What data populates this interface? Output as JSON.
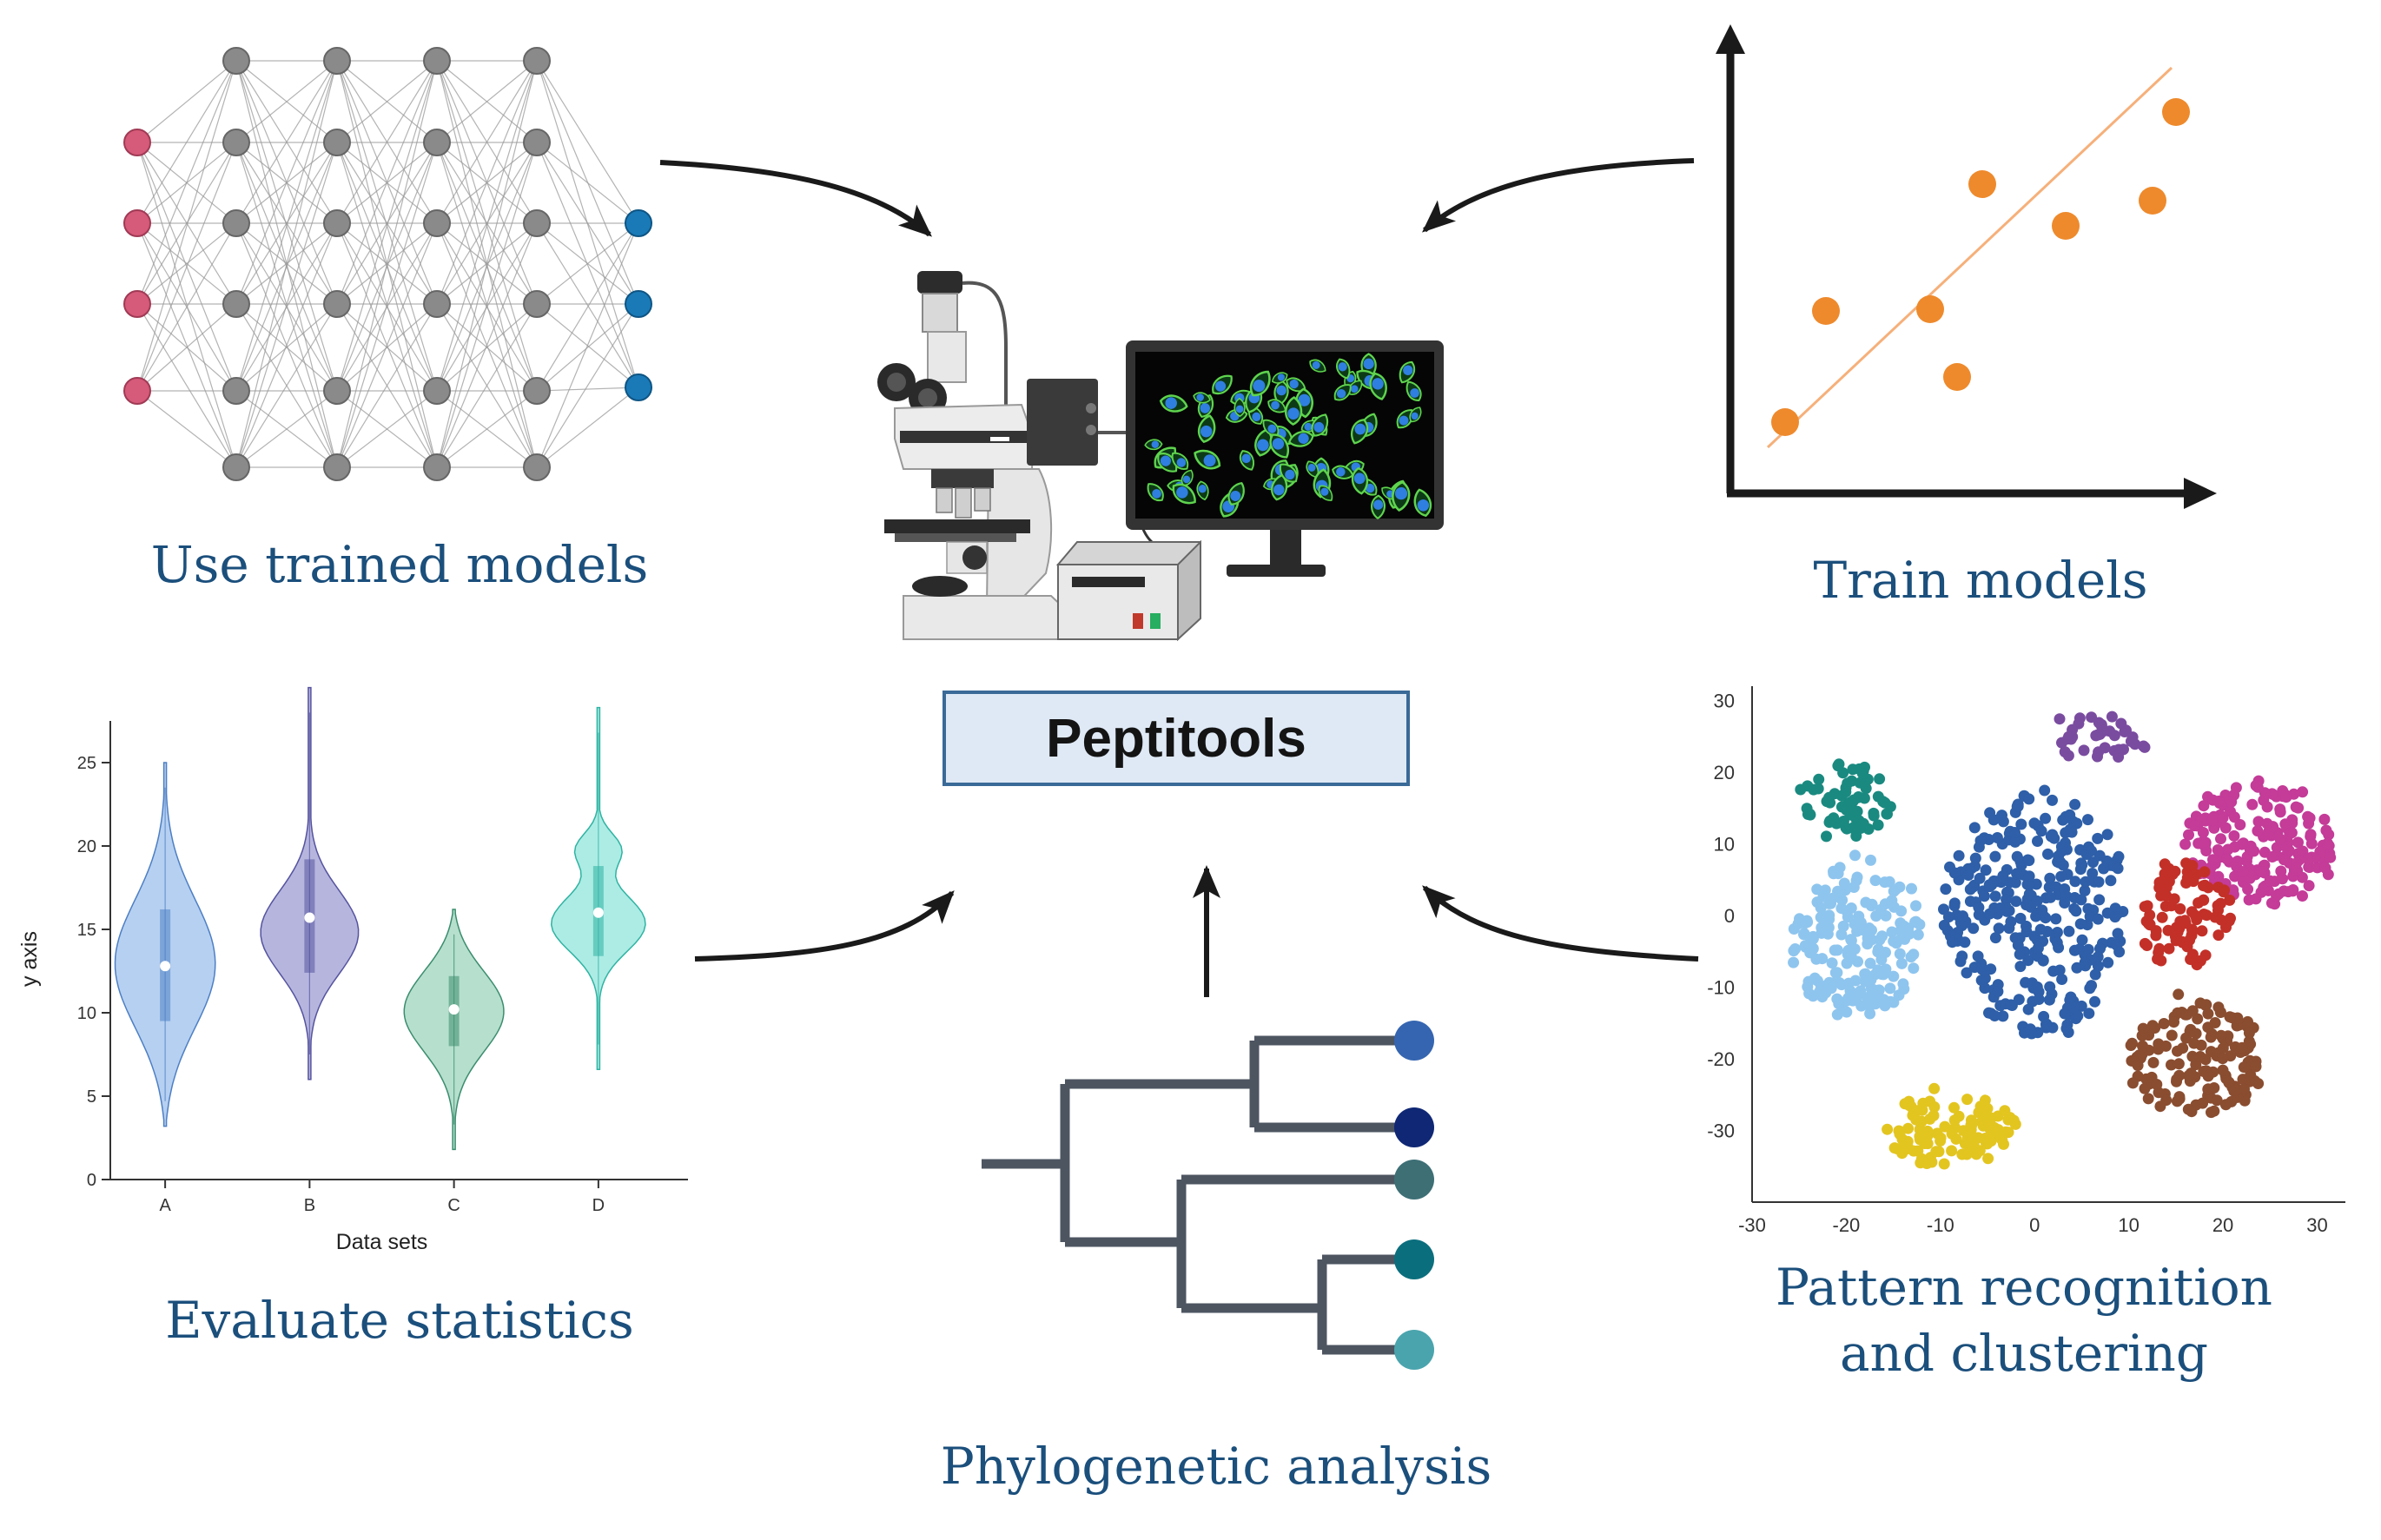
{
  "center": {
    "title": "Peptitools"
  },
  "captions": {
    "use_trained": "Use trained models",
    "train": "Train models",
    "evaluate": "Evaluate statistics",
    "pattern_line1": "Pattern recognition",
    "pattern_line2": "and clustering",
    "phylo": "Phylogenetic analysis"
  },
  "colors": {
    "caption": "#1b4f7c",
    "arrow": "#1a1a1a",
    "input_node": "#d65a79",
    "hidden_node": "#8a8a8a",
    "output_node": "#1a7ab8",
    "scatter": "#ee8a2c",
    "center_fill": "#dfe9f6",
    "center_border": "#3a6a97"
  },
  "icons": {
    "neural_network": "neural-network-icon",
    "microscope": "microscope-icon",
    "monitor": "monitor-cells-icon",
    "controller": "controller-box-icon",
    "scatter": "scatter-regression-icon",
    "violin": "violin-plot-icon",
    "tsne": "cluster-plot-icon",
    "tree": "phylogenetic-tree-icon"
  },
  "charts": {
    "violin": {
      "type": "violin",
      "xlabel": "Data sets",
      "ylabel": "y axis",
      "categories": [
        "A",
        "B",
        "C",
        "D"
      ],
      "yticks": [
        "0",
        "5",
        "10",
        "15",
        "20",
        "25"
      ],
      "ylim": [
        0,
        27.5
      ],
      "series": [
        {
          "category": "A",
          "color": "#a9c8ee",
          "stroke": "#4d7fc4",
          "median": 12.8,
          "q1": 9.5,
          "q3": 16.2,
          "min": 3.2,
          "max": 25
        },
        {
          "category": "B",
          "color": "#a9a8d8",
          "stroke": "#55539e",
          "median": 15.7,
          "q1": 12.4,
          "q3": 19.2,
          "min": 6.0,
          "max": 29.5
        },
        {
          "category": "C",
          "color": "#a9d9c6",
          "stroke": "#3b8d6e",
          "median": 10.2,
          "q1": 8.0,
          "q3": 12.2,
          "min": 1.8,
          "max": 16.2
        },
        {
          "category": "D",
          "color": "#9ee9e0",
          "stroke": "#2fb3a2",
          "median": 16.0,
          "q1": 13.4,
          "q3": 18.8,
          "min": 6.6,
          "max": 28.3
        }
      ]
    },
    "tsne": {
      "type": "scatter",
      "xticks": [
        "-30",
        "-20",
        "-10",
        "0",
        "10",
        "20",
        "30"
      ],
      "yticks": [
        "30",
        "20",
        "10",
        "0",
        "-10",
        "-20",
        "-30"
      ],
      "xlim": [
        -30,
        33
      ],
      "ylim": [
        -40,
        32
      ],
      "clusters": [
        {
          "color": "#2e5fa8",
          "cx": 0,
          "cy": 0,
          "rx": 9.5,
          "ry": 17,
          "n": 320
        },
        {
          "color": "#1a8a80",
          "cx": -20,
          "cy": 16,
          "rx": 5,
          "ry": 5,
          "n": 70
        },
        {
          "color": "#8ec5ee",
          "cx": -19,
          "cy": -3,
          "rx": 7,
          "ry": 11,
          "n": 190
        },
        {
          "color": "#7a4ca0",
          "cx": 7,
          "cy": 25,
          "rx": 5,
          "ry": 3,
          "n": 40
        },
        {
          "color": "#c43b98",
          "cx": 24,
          "cy": 10,
          "rx": 8,
          "ry": 8.5,
          "n": 190
        },
        {
          "color": "#c33028",
          "cx": 16,
          "cy": 0,
          "rx": 5,
          "ry": 7.5,
          "n": 90
        },
        {
          "color": "#8a4d30",
          "cx": 17,
          "cy": -20,
          "rx": 7,
          "ry": 8.5,
          "n": 150
        },
        {
          "color": "#e3c520",
          "cx": -9,
          "cy": -30,
          "rx": 7,
          "ry": 5,
          "n": 110
        }
      ]
    }
  }
}
